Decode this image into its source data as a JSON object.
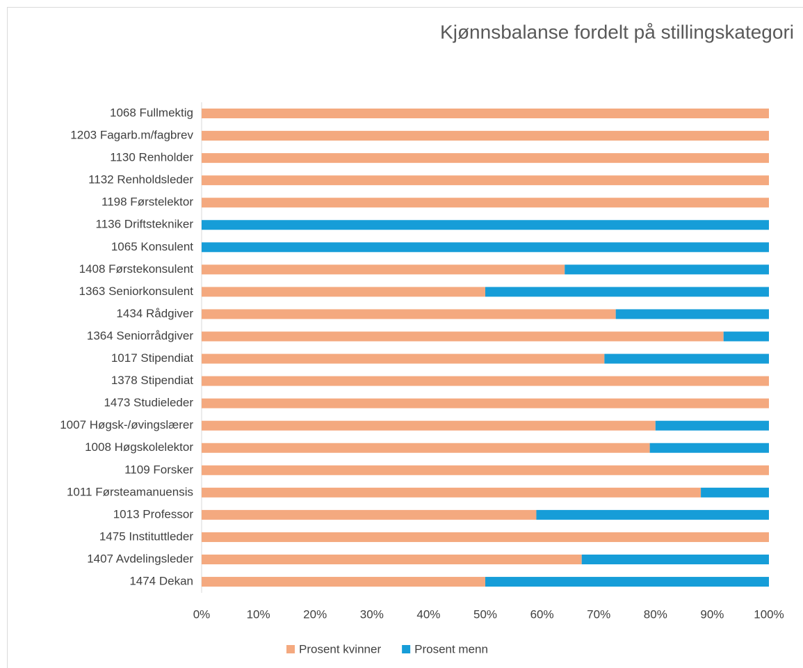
{
  "chart_data": {
    "type": "stacked_bar_horizontal",
    "title": "Kjønnsbalanse fordelt på stillingskategori",
    "categories": [
      "1068 Fullmektig",
      "1203 Fagarb.m/fagbrev",
      "1130 Renholder",
      "1132 Renholdsleder",
      "1198 Førstelektor",
      "1136 Driftstekniker",
      "1065 Konsulent",
      "1408 Førstekonsulent",
      "1363 Seniorkonsulent",
      "1434 Rådgiver",
      "1364 Seniorrådgiver",
      "1017 Stipendiat",
      "1378 Stipendiat",
      "1473 Studieleder",
      "1007 Høgsk-/øvingslærer",
      "1008 Høgskolelektor",
      "1109 Forsker",
      "1011 Førsteamanuensis",
      "1013 Professor",
      "1475 Instituttleder",
      "1407 Avdelingsleder",
      "1474 Dekan"
    ],
    "series": [
      {
        "name": "Prosent kvinner",
        "color": "#f4a97f",
        "values": [
          100,
          100,
          100,
          100,
          100,
          0,
          0,
          64,
          50,
          73,
          92,
          71,
          100,
          100,
          80,
          79,
          100,
          88,
          59,
          100,
          67,
          50
        ]
      },
      {
        "name": "Prosent menn",
        "color": "#169dd8",
        "values": [
          0,
          0,
          0,
          0,
          0,
          100,
          100,
          36,
          50,
          27,
          8,
          29,
          0,
          0,
          20,
          21,
          0,
          12,
          41,
          0,
          33,
          50
        ]
      }
    ],
    "xlim": [
      0,
      100
    ],
    "xticks": [
      {
        "value": 0,
        "label": "0%"
      },
      {
        "value": 10,
        "label": "10%"
      },
      {
        "value": 20,
        "label": "20%"
      },
      {
        "value": 30,
        "label": "30%"
      },
      {
        "value": 40,
        "label": "40%"
      },
      {
        "value": 50,
        "label": "50%"
      },
      {
        "value": 60,
        "label": "60%"
      },
      {
        "value": 70,
        "label": "70%"
      },
      {
        "value": 80,
        "label": "80%"
      },
      {
        "value": 90,
        "label": "90%"
      },
      {
        "value": 100,
        "label": "100%"
      }
    ],
    "legend": "bottom"
  }
}
